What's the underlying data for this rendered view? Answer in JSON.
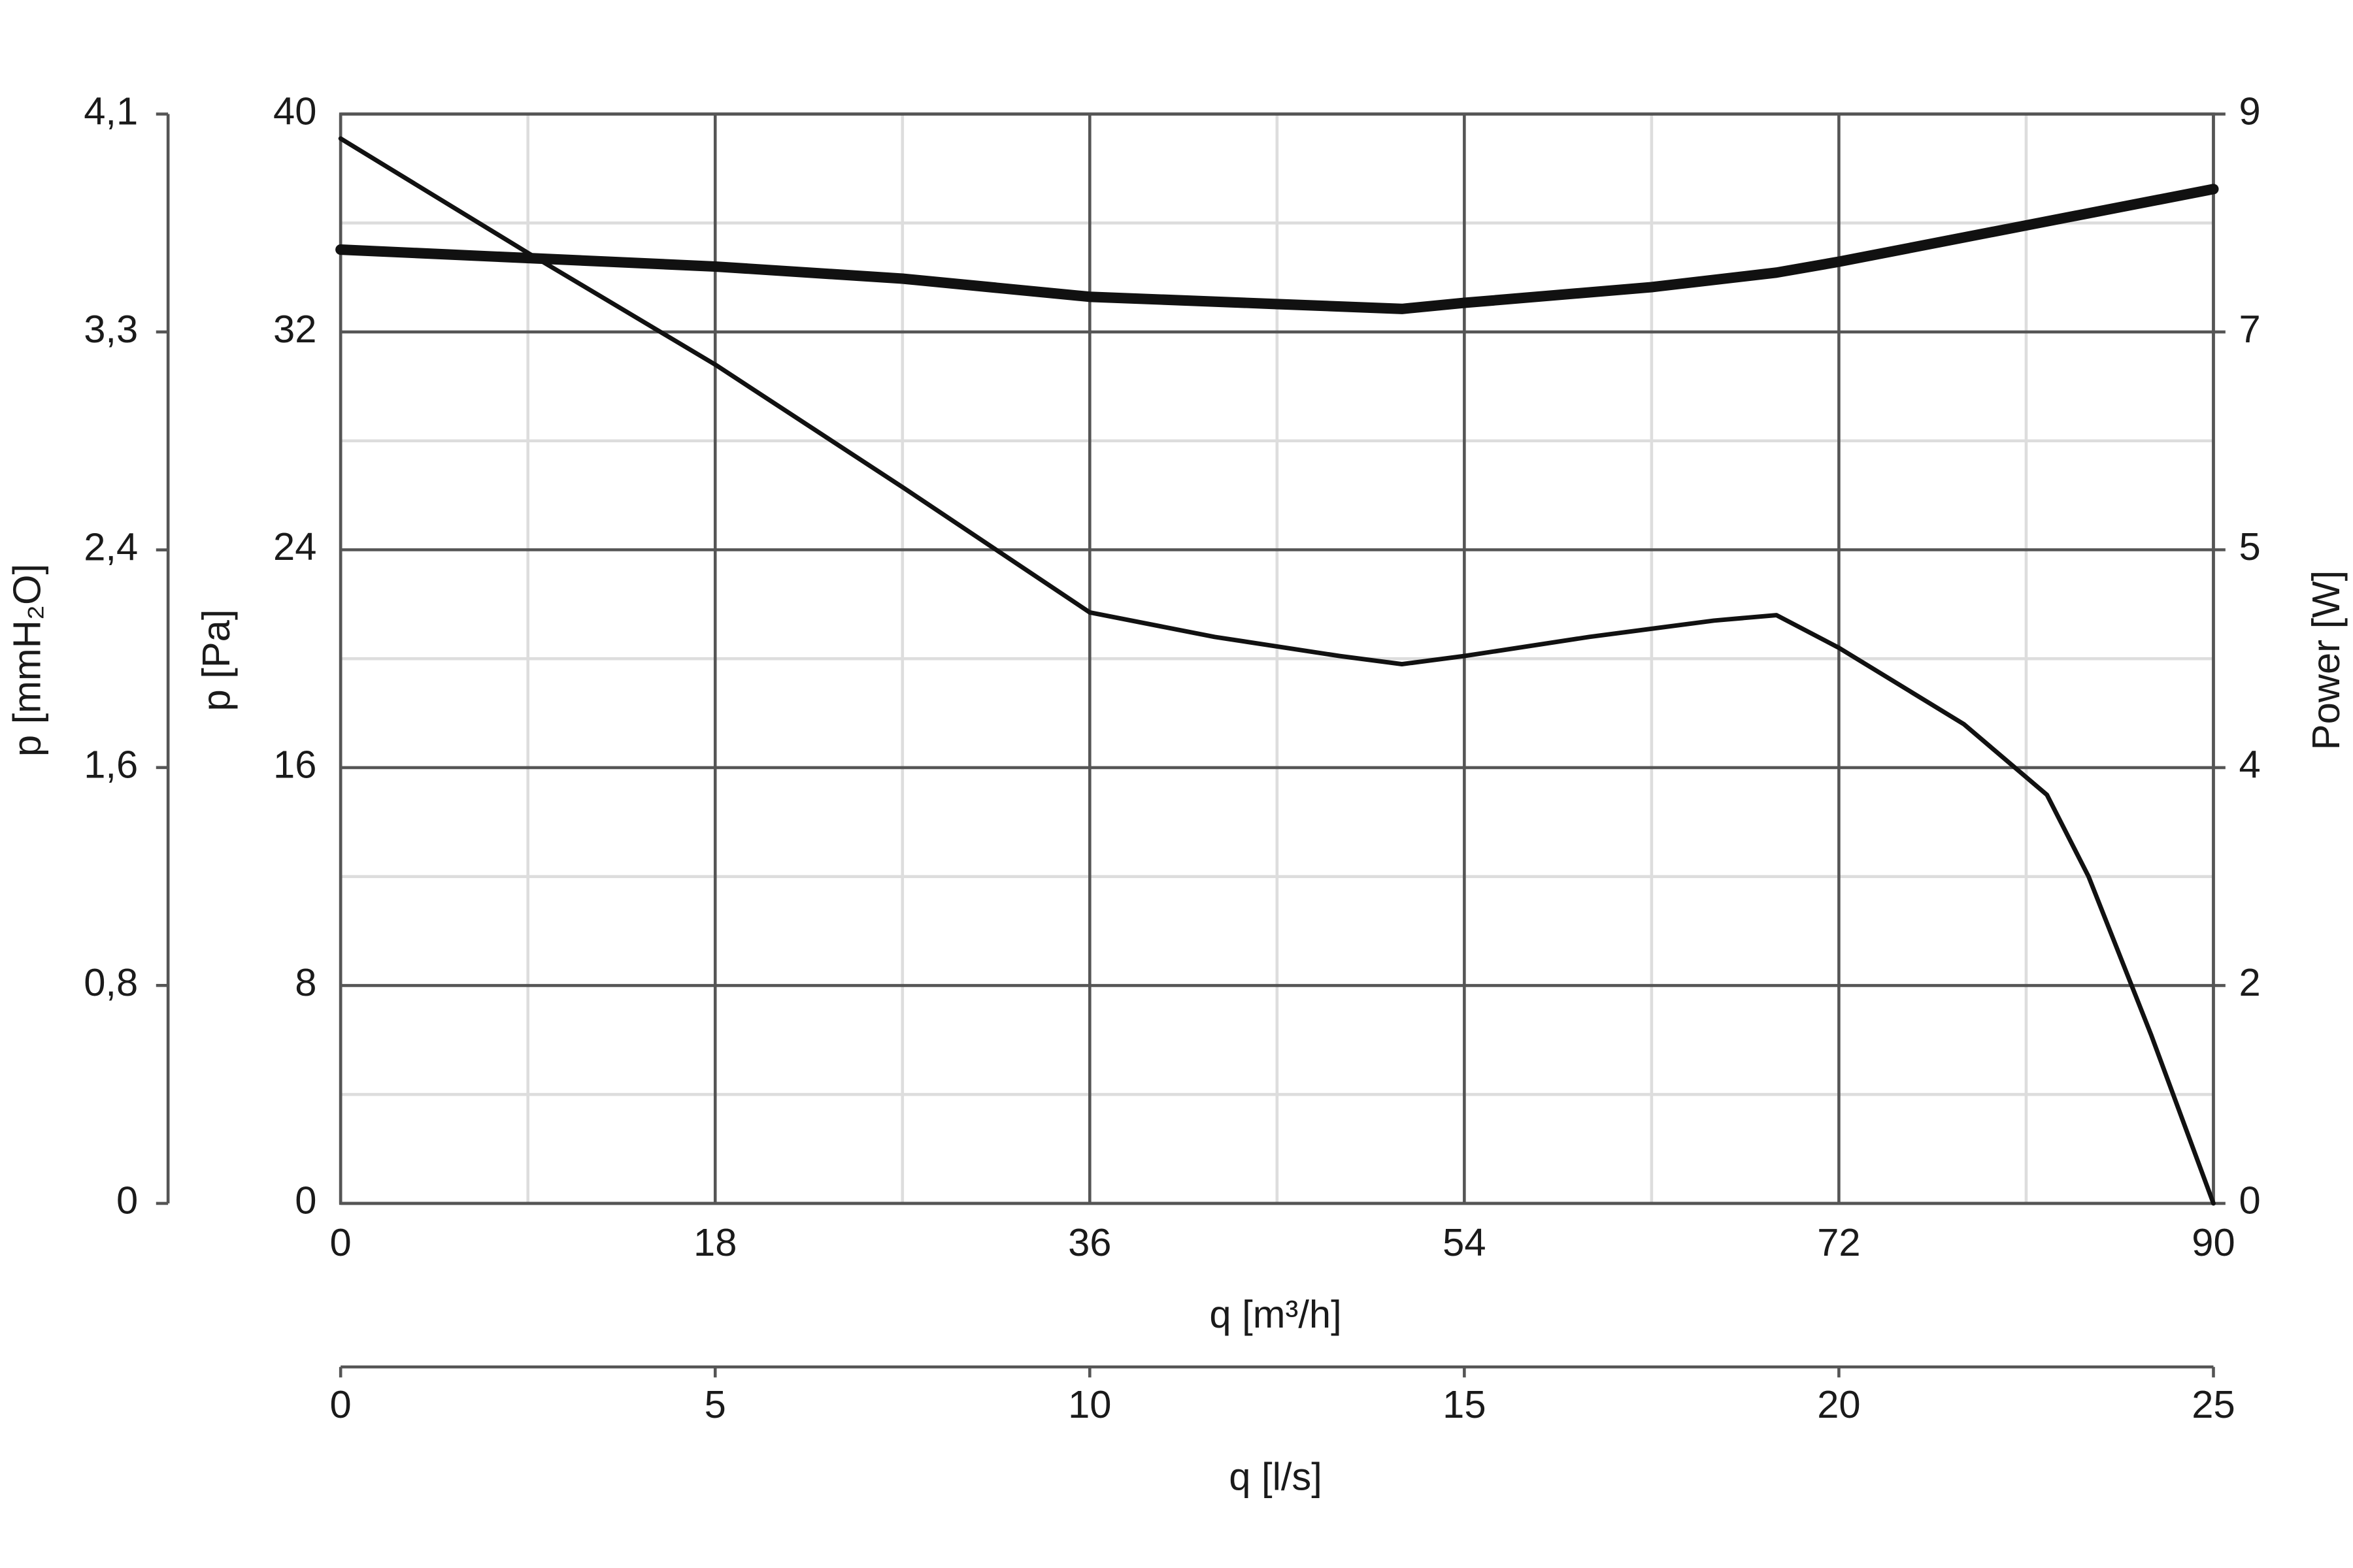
{
  "chart_data": {
    "type": "line",
    "xlim": [
      0,
      90
    ],
    "xticks": [
      0,
      18,
      36,
      54,
      72,
      90
    ],
    "xlabel": "q [m³/h]",
    "x2lim": [
      0,
      25
    ],
    "x2ticks": [
      0,
      5,
      10,
      15,
      20,
      25
    ],
    "x2label": "q [l/s]",
    "ylim": [
      0,
      40
    ],
    "yticks": [
      0,
      8,
      16,
      24,
      32,
      40
    ],
    "ylabel": "p [Pa]",
    "y2lim": [
      0,
      9
    ],
    "y2ticks": [
      0,
      {
        "value": 1.8,
        "label": "2"
      },
      {
        "value": 3.6,
        "label": "4"
      },
      {
        "value": 5.4,
        "label": "5"
      },
      {
        "value": 7.2,
        "label": "7"
      },
      9
    ],
    "y2label": "Power [W]",
    "y3lim": [
      0,
      4.079
    ],
    "y3ticks": [
      0,
      {
        "value": 0.816,
        "label": "0,8"
      },
      {
        "value": 1.632,
        "label": "1,6"
      },
      {
        "value": 2.447,
        "label": "2,4"
      },
      {
        "value": 3.263,
        "label": "3,3"
      },
      {
        "value": 4.079,
        "label": "4,1"
      }
    ],
    "y3label": "p [mmH₂O]",
    "grid": true,
    "series": [
      {
        "color": "#111111",
        "width": 3,
        "x": [
          0,
          9,
          18,
          27,
          36,
          42,
          48,
          51,
          54,
          60,
          66,
          69,
          72,
          78,
          82,
          84,
          87,
          90
        ],
        "values": [
          39.1,
          34.9,
          30.8,
          26.3,
          21.7,
          20.8,
          20.1,
          19.8,
          20.1,
          20.8,
          21.4,
          21.6,
          20.4,
          17.6,
          15.0,
          12.0,
          6.2,
          0
        ]
      },
      {
        "color": "#111111",
        "width": 7,
        "axis": "y2",
        "x": [
          0,
          18,
          27,
          36,
          45,
          51,
          54,
          63,
          69,
          72,
          81,
          90
        ],
        "values": [
          7.88,
          7.74,
          7.64,
          7.49,
          7.43,
          7.39,
          7.44,
          7.57,
          7.69,
          7.78,
          8.08,
          8.38
        ]
      }
    ]
  }
}
